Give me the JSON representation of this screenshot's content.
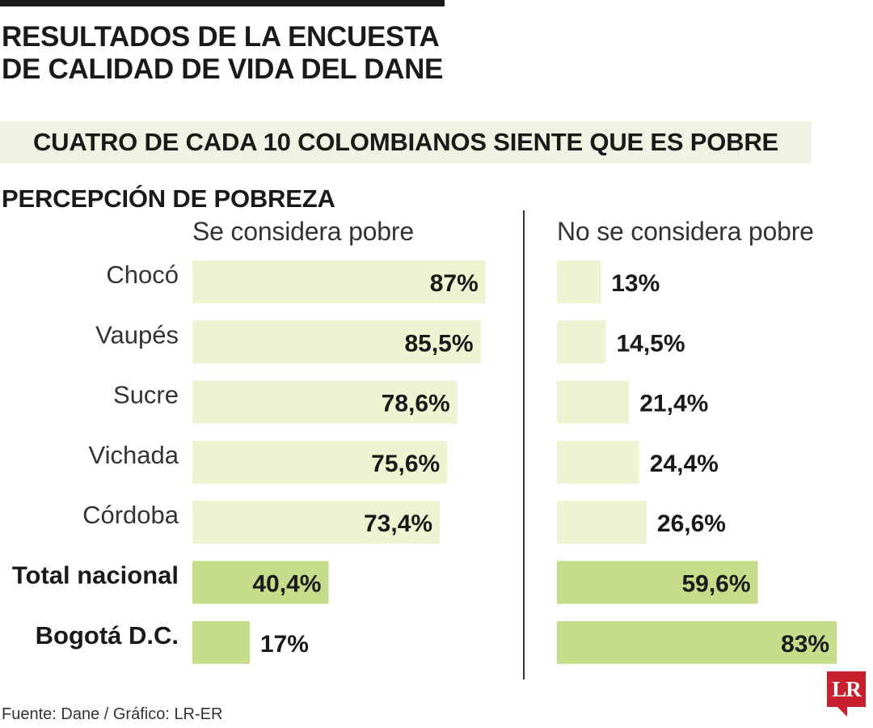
{
  "header": {
    "title": "RESULTADOS DE LA ENCUESTA DE CALIDAD DE VIDA DEL DANE",
    "subtitle": "CUATRO DE CADA 10 COLOMBIANOS SIENTE QUE ES POBRE",
    "section": "PERCEPCIÓN DE POBREZA"
  },
  "footer": {
    "source": "Fuente: Dane / Gráfico: LR-ER"
  },
  "logo": {
    "text": "LR"
  },
  "colors": {
    "light_bar": "#eef3d2",
    "dark_bar": "#c6dc8a",
    "band": "#eef3e4",
    "logo": "#c8202f"
  },
  "chart_data": {
    "type": "bar",
    "orientation": "horizontal",
    "categories": [
      "Chocó",
      "Vaupés",
      "Sucre",
      "Vichada",
      "Córdoba",
      "Total nacional",
      "Bogotá D.C."
    ],
    "highlight": [
      "Total nacional",
      "Bogotá D.C."
    ],
    "series": [
      {
        "name": "Se considera pobre",
        "values": [
          87,
          85.5,
          78.6,
          75.6,
          73.4,
          40.4,
          17
        ],
        "labels": [
          "87%",
          "85,5%",
          "78,6%",
          "75,6%",
          "73,4%",
          "40,4%",
          "17%"
        ]
      },
      {
        "name": "No se considera pobre",
        "values": [
          13,
          14.5,
          21.4,
          24.4,
          26.6,
          59.6,
          83
        ],
        "labels": [
          "13%",
          "14,5%",
          "21,4%",
          "24,4%",
          "26,6%",
          "59,6%",
          "83%"
        ]
      }
    ],
    "xlim": [
      0,
      100
    ],
    "grid": false,
    "legend": "none"
  }
}
